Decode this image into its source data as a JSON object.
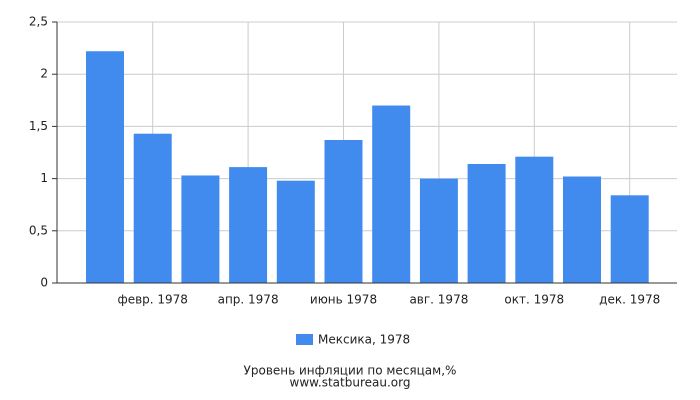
{
  "chart_data": {
    "type": "bar",
    "title": "Уровень инфляции по месяцам,%",
    "source": "www.statbureau.org",
    "categories": [
      null,
      "февр. 1978",
      null,
      "апр. 1978",
      null,
      "июнь 1978",
      null,
      "авг. 1978",
      null,
      "окт. 1978",
      null,
      "дек. 1978"
    ],
    "series": [
      {
        "name": "Мексика, 1978",
        "color": "#418bef",
        "values": [
          2.22,
          1.43,
          1.03,
          1.11,
          0.98,
          1.37,
          1.7,
          1.0,
          1.14,
          1.21,
          1.02,
          0.84
        ]
      }
    ],
    "ylim": [
      0,
      2.5
    ],
    "yticks": [
      0,
      {
        "value": 0.5,
        "label": "0,5"
      },
      1,
      {
        "value": 1.5,
        "label": "1,5"
      },
      2,
      {
        "value": 2.5,
        "label": "2,5"
      }
    ],
    "grid": true
  }
}
